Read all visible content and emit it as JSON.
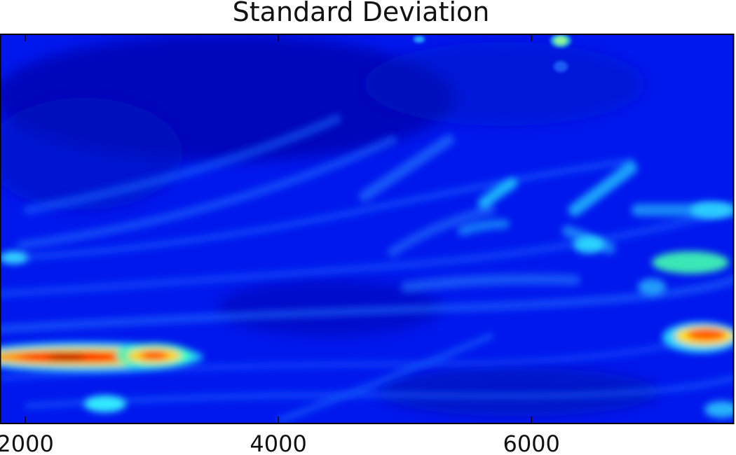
{
  "chart_data": {
    "type": "heatmap",
    "title": "Standard Deviation",
    "xlabel": "",
    "ylabel": "",
    "colormap": "jet",
    "xlim": [
      1800,
      7600
    ],
    "xticks": [
      2000,
      4000,
      6000
    ],
    "xtick_labels": [
      "2000",
      "4000",
      "6000"
    ],
    "background_color": "#0018ee",
    "features": [
      {
        "x_from": 1800,
        "x_to": 3200,
        "y_rel": 0.82,
        "level": "high"
      },
      {
        "x_from": 7000,
        "x_to": 7600,
        "y_rel": 0.77,
        "level": "high"
      },
      {
        "x_from": 7000,
        "x_to": 7600,
        "y_rel": 0.58,
        "level": "medium"
      },
      {
        "x_from": 5300,
        "x_to": 6600,
        "y_rel": 0.43,
        "level": "medium"
      },
      {
        "x_from": 2300,
        "x_to": 2600,
        "y_rel": 0.95,
        "level": "medium"
      }
    ]
  }
}
